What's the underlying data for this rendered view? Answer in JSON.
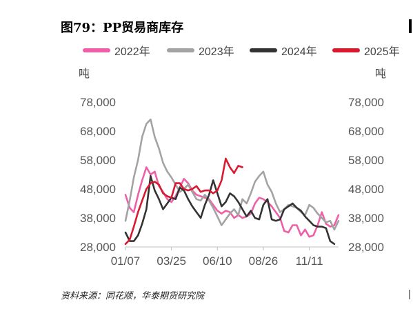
{
  "title": "图79：PP贸易商库存",
  "source": "资料来源：同花顺，华泰期货研究院",
  "chart_data": {
    "type": "line",
    "ylabel_left": "吨",
    "ylabel_right": "吨",
    "ylim": [
      28000,
      78000
    ],
    "yticks": [
      28000,
      38000,
      48000,
      58000,
      68000,
      78000
    ],
    "ytick_labels": [
      "28,000",
      "38,000",
      "48,000",
      "58,000",
      "68,000",
      "78,000"
    ],
    "xlim": [
      1,
      52
    ],
    "xticks": [
      1,
      12,
      23,
      34,
      45
    ],
    "xtick_labels": [
      "01/07",
      "03/25",
      "06/10",
      "08/26",
      "11/11"
    ],
    "legend_position": "top",
    "series": [
      {
        "name": "2022年",
        "color": "#ee5fa7",
        "values": [
          46000,
          41500,
          40000,
          46000,
          51000,
          55500,
          53000,
          54000,
          49000,
          47000,
          44500,
          43500,
          45500,
          48500,
          51500,
          50000,
          47500,
          46000,
          45500,
          45000,
          44500,
          42500,
          40500,
          39500,
          40500,
          40000,
          38000,
          39000,
          38000,
          38500,
          39500,
          43000,
          45000,
          44500,
          43500,
          42000,
          40000,
          38000,
          33500,
          33000,
          35500,
          35500,
          32000,
          34000,
          31500,
          32000,
          35500,
          40000,
          36000,
          35000,
          35500,
          39000
        ]
      },
      {
        "name": "2023年",
        "color": "#a3a3a3",
        "values": [
          37000,
          44000,
          52000,
          58000,
          66000,
          70500,
          72000,
          66000,
          62000,
          57000,
          54000,
          52000,
          49500,
          47000,
          48000,
          49500,
          47000,
          44500,
          44000,
          46000,
          44000,
          41500,
          38500,
          35500,
          37500,
          39500,
          41000,
          39000,
          44500,
          43000,
          46500,
          50500,
          52500,
          54000,
          49500,
          47000,
          43000,
          40000,
          41000,
          42500,
          42000,
          41500,
          40000,
          39000,
          42500,
          41500,
          39500,
          38000,
          36500,
          37000,
          34000,
          37000
        ]
      },
      {
        "name": "2024年",
        "color": "#333333",
        "values": [
          33000,
          30000,
          30000,
          32000,
          36000,
          41000,
          52500,
          47500,
          44500,
          41000,
          43000,
          45000,
          44500,
          48500,
          47500,
          44500,
          42000,
          40000,
          38000,
          42500,
          46000,
          51000,
          46500,
          42000,
          43500,
          46500,
          45500,
          43500,
          41000,
          38500,
          40500,
          38000,
          37500,
          42500,
          44500,
          37500,
          37000,
          37500,
          41000,
          42000,
          43000,
          41500,
          40500,
          38500,
          37000,
          35500,
          35000,
          35000,
          34500,
          30000,
          29000,
          null
        ]
      },
      {
        "name": "2025年",
        "color": "#d8192f",
        "values": [
          29000,
          30500,
          35000,
          40000,
          44000,
          48000,
          50000,
          50500,
          49500,
          46500,
          45500,
          45000,
          50000,
          50000,
          48000,
          47500,
          48000,
          49000,
          47000,
          47500,
          47500,
          46500,
          47500,
          51000,
          58500,
          55500,
          53500,
          56000,
          55500,
          null,
          null,
          null,
          null,
          null,
          null,
          null,
          null,
          null,
          null,
          null,
          null,
          null,
          null,
          null,
          null,
          null,
          null,
          null,
          null,
          null,
          null,
          null
        ]
      }
    ]
  }
}
